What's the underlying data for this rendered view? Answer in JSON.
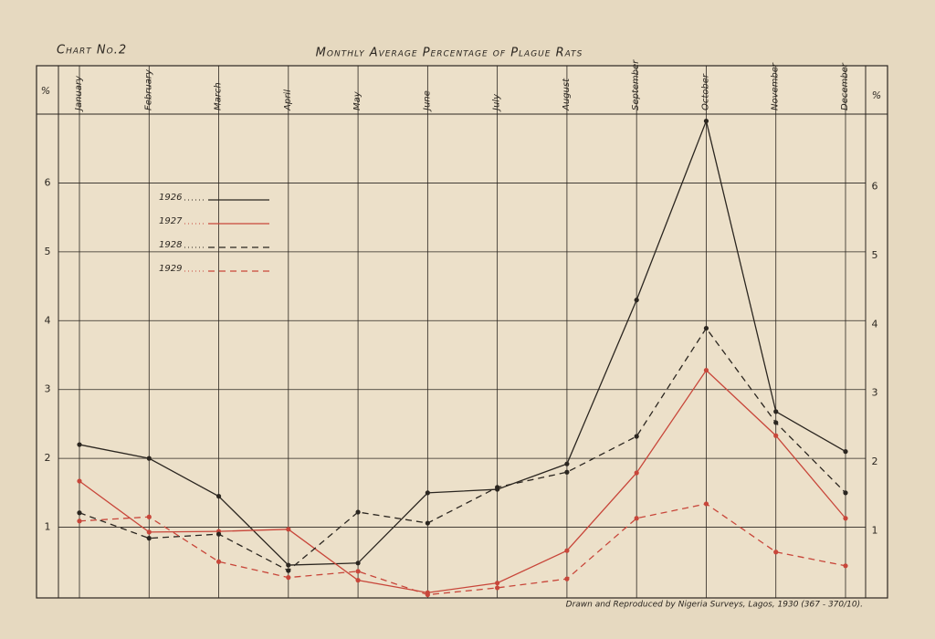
{
  "chart_data": {
    "type": "line",
    "title": "Monthly Average Percentage of Plague Rats",
    "chart_label": "Chart No.2",
    "y_axis_label": "%",
    "note": "Drawn and Reproduced by Nigeria Surveys, Lagos, 1930 (367 - 370/10).",
    "categories": [
      "January",
      "February",
      "March",
      "April",
      "May",
      "June",
      "July",
      "August",
      "September",
      "October",
      "November",
      "December"
    ],
    "series": [
      {
        "name": "1926",
        "color": "#2b2620",
        "line_style": "solid",
        "values": [
          2.2,
          2.0,
          1.45,
          0.45,
          0.48,
          1.5,
          1.55,
          1.92,
          4.3,
          6.9,
          2.68,
          2.1
        ]
      },
      {
        "name": "1927",
        "color": "#c8463a",
        "line_style": "solid",
        "values": [
          1.67,
          0.93,
          0.94,
          0.97,
          0.23,
          0.05,
          0.19,
          0.66,
          1.79,
          3.28,
          2.33,
          1.13
        ]
      },
      {
        "name": "1928",
        "color": "#2b2620",
        "line_style": "dashed",
        "values": [
          1.21,
          0.84,
          0.9,
          0.37,
          1.22,
          1.06,
          1.58,
          1.8,
          2.32,
          3.89,
          2.52,
          1.5
        ]
      },
      {
        "name": "1929",
        "color": "#c8463a",
        "line_style": "dashed",
        "values": [
          1.09,
          1.15,
          0.5,
          0.27,
          0.36,
          0.02,
          0.12,
          0.25,
          1.13,
          1.34,
          0.64,
          0.44
        ]
      }
    ],
    "ylim": [
      0,
      7
    ],
    "yticks": [
      1,
      2,
      3,
      4,
      5,
      6
    ],
    "grid": true
  }
}
